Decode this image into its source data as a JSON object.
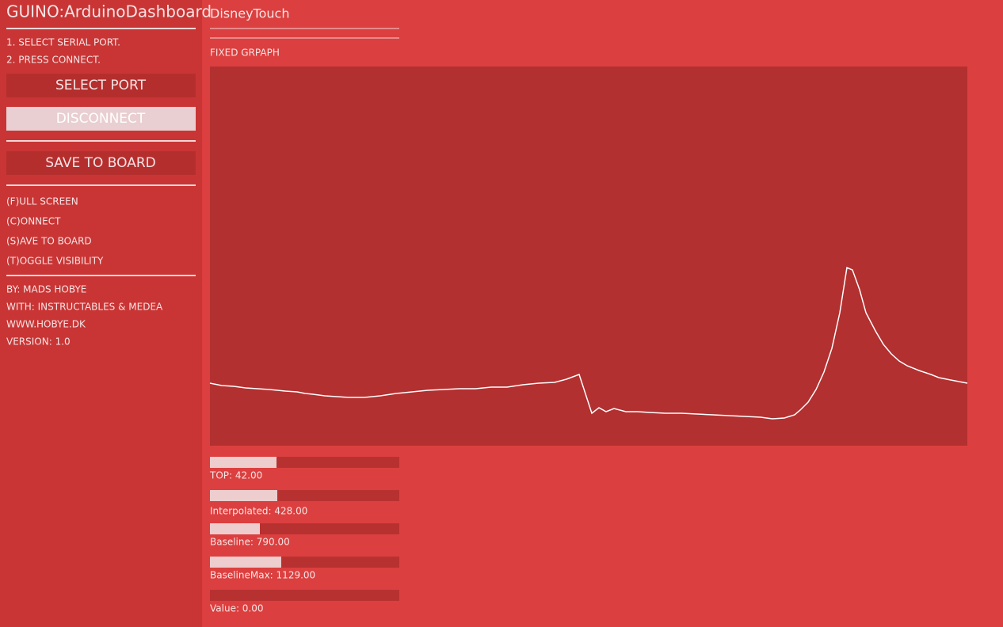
{
  "sidebar": {
    "title": "GUINO:ArduinoDashboard",
    "instructions": [
      "1. SELECT SERIAL PORT.",
      "2. PRESS CONNECT."
    ],
    "buttons": [
      "SELECT PORT",
      "DISCONNECT",
      "SAVE TO BOARD"
    ],
    "shortcuts": [
      "(F)ULL SCREEN",
      "(C)ONNECT",
      "(S)AVE TO BOARD",
      "(T)OGGLE VISIBILITY"
    ],
    "credits": [
      "BY: MADS HOBYE",
      "WITH: INSTRUCTABLES & MEDEA",
      "WWW.HOBYE.DK",
      "VERSION: 1.0"
    ]
  },
  "main": {
    "title": "DisneyTouch",
    "graph_label": "FIXED GRPAPH",
    "sliders": [
      "TOP: 42.00",
      "Interpolated: 428.00",
      "Baseline: 790.00",
      "BaselineMax: 1129.00",
      "Value: 0.00"
    ]
  }
}
